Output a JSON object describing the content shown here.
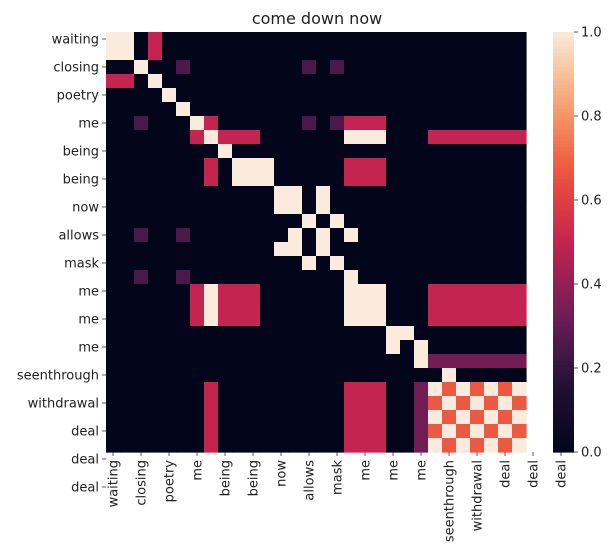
{
  "chart_data": {
    "type": "heatmap",
    "title": "come down now",
    "xlabel": "",
    "ylabel": "",
    "row_tick_labels": [
      "waiting",
      "closing",
      "poetry",
      "me",
      "being",
      "being",
      "now",
      "allows",
      "mask",
      "me",
      "me",
      "me",
      "seenthrough",
      "withdrawal",
      "deal",
      "deal",
      "deal"
    ],
    "col_tick_labels": [
      "waiting",
      "closing",
      "poetry",
      "me",
      "being",
      "being",
      "now",
      "allows",
      "mask",
      "me",
      "me",
      "me",
      "seenthrough",
      "withdrawal",
      "deal",
      "deal",
      "deal"
    ],
    "tokens": [
      "waiting",
      "waiting",
      "closing",
      "closing",
      "closing",
      "poetry",
      "me",
      "me",
      "being",
      "being",
      "being",
      "now",
      "now",
      "allows",
      "allows",
      "mask",
      "mask",
      "me",
      "me",
      "me",
      "seenthrough",
      "seenthrough",
      "withdrawal",
      "deal",
      "deal",
      "deal",
      "deal",
      "deal",
      "deal",
      "deal"
    ],
    "values": [
      [
        1,
        1,
        0,
        0.5,
        0,
        0,
        0,
        0,
        0,
        0,
        0,
        0,
        0,
        0,
        0,
        0,
        0,
        0,
        0,
        0,
        0,
        0,
        0,
        0,
        0,
        0,
        0,
        0,
        0,
        0
      ],
      [
        1,
        1,
        0,
        0.5,
        0,
        0,
        0,
        0,
        0,
        0,
        0,
        0,
        0,
        0,
        0,
        0,
        0,
        0,
        0,
        0,
        0,
        0,
        0,
        0,
        0,
        0,
        0,
        0,
        0,
        0
      ],
      [
        0,
        0,
        1,
        0,
        0,
        0.25,
        0,
        0,
        0,
        0,
        0,
        0,
        0,
        0,
        0.25,
        0,
        0.25,
        0,
        0,
        0,
        0,
        0,
        0,
        0,
        0,
        0,
        0,
        0,
        0,
        0
      ],
      [
        0.5,
        0.5,
        0,
        1,
        0,
        0,
        0,
        0,
        0,
        0,
        0,
        0,
        0,
        0,
        0,
        0,
        0,
        0,
        0,
        0,
        0,
        0,
        0,
        0,
        0,
        0,
        0,
        0,
        0,
        0
      ],
      [
        0,
        0,
        0,
        0,
        1,
        0,
        0,
        0,
        0,
        0,
        0,
        0,
        0,
        0,
        0,
        0,
        0,
        0,
        0,
        0,
        0,
        0,
        0,
        0,
        0,
        0,
        0,
        0,
        0,
        0
      ],
      [
        0,
        0,
        0,
        0,
        0,
        1,
        0,
        0,
        0,
        0,
        0,
        0,
        0,
        0,
        0,
        0,
        0,
        0,
        0,
        0,
        0,
        0,
        0,
        0,
        0,
        0,
        0,
        0,
        0,
        0
      ],
      [
        0,
        0,
        0.25,
        0,
        0,
        0,
        1,
        0.5,
        0,
        0,
        0,
        0,
        0,
        0,
        0.25,
        0,
        0.25,
        0.5,
        0.5,
        0.5,
        0,
        0,
        0,
        0,
        0,
        0,
        0,
        0,
        0,
        0
      ],
      [
        0,
        0,
        0,
        0,
        0,
        0,
        0.5,
        1,
        0.5,
        0.5,
        0.5,
        0,
        0,
        0,
        0,
        0,
        0,
        1,
        1,
        1,
        0,
        0,
        0,
        0.5,
        0.5,
        0.5,
        0.5,
        0.5,
        0.5,
        0.5
      ],
      [
        0,
        0,
        0,
        0,
        0,
        0,
        0,
        0,
        1,
        0,
        0,
        0,
        0,
        0,
        0,
        0,
        0,
        0,
        0,
        0,
        0,
        0,
        0,
        0,
        0,
        0,
        0,
        0,
        0,
        0
      ],
      [
        0,
        0,
        0,
        0,
        0,
        0,
        0,
        0.5,
        0,
        1,
        1,
        1,
        0,
        0,
        0,
        0,
        0,
        0.5,
        0.5,
        0.5,
        0,
        0,
        0,
        0,
        0,
        0,
        0,
        0,
        0,
        0
      ],
      [
        0,
        0,
        0,
        0,
        0,
        0,
        0,
        0.5,
        0,
        1,
        1,
        1,
        0,
        0,
        0,
        0,
        0,
        0.5,
        0.5,
        0.5,
        0,
        0,
        0,
        0,
        0,
        0,
        0,
        0,
        0,
        0
      ],
      [
        0,
        0,
        0,
        0,
        0,
        0,
        0,
        0,
        0,
        0,
        0,
        0,
        1,
        1,
        0,
        1,
        0,
        0,
        0,
        0,
        0,
        0,
        0,
        0,
        0,
        0,
        0,
        0,
        0,
        0
      ],
      [
        0,
        0,
        0,
        0,
        0,
        0,
        0,
        0,
        0,
        0,
        0,
        0,
        1,
        1,
        0,
        1,
        0,
        0,
        0,
        0,
        0,
        0,
        0,
        0,
        0,
        0,
        0,
        0,
        0,
        0
      ],
      [
        0,
        0,
        0,
        0,
        0,
        0,
        0,
        0,
        0,
        0,
        0,
        0,
        0,
        0,
        1,
        0,
        1,
        0,
        0,
        0,
        0,
        0,
        0,
        0,
        0,
        0,
        0,
        0,
        0,
        0
      ],
      [
        0,
        0,
        0.25,
        0,
        0,
        0.25,
        0,
        0,
        0,
        0,
        0,
        0,
        0,
        1,
        0,
        1,
        0,
        1,
        0,
        0,
        0,
        0,
        0,
        0,
        0,
        0,
        0,
        0,
        0,
        0
      ],
      [
        0,
        0,
        0,
        0,
        0,
        0,
        0,
        0,
        0,
        0,
        0,
        0,
        1,
        1,
        0,
        1,
        0,
        0,
        0,
        0,
        0,
        0,
        0,
        0,
        0,
        0,
        0,
        0,
        0,
        0
      ],
      [
        0,
        0,
        0,
        0,
        0,
        0,
        0,
        0,
        0,
        0,
        0,
        0,
        0,
        0,
        1,
        0,
        1,
        0,
        0,
        0,
        0,
        0,
        0,
        0,
        0,
        0,
        0,
        0,
        0,
        0
      ],
      [
        0,
        0,
        0.25,
        0,
        0,
        0.25,
        0,
        0,
        0,
        0,
        0,
        0,
        0,
        0,
        0,
        0,
        0,
        1,
        0,
        0,
        0,
        0,
        0,
        0,
        0,
        0,
        0,
        0,
        0,
        0
      ],
      [
        0,
        0,
        0,
        0,
        0,
        0,
        0.5,
        1,
        0.5,
        0.5,
        0.5,
        0,
        0,
        0,
        0,
        0,
        0,
        1,
        1,
        1,
        0,
        0,
        0,
        0.5,
        0.5,
        0.5,
        0.5,
        0.5,
        0.5,
        0.5
      ],
      [
        0,
        0,
        0,
        0,
        0,
        0,
        0.5,
        1,
        0.5,
        0.5,
        0.5,
        0,
        0,
        0,
        0,
        0,
        0,
        1,
        1,
        1,
        0,
        0,
        0,
        0.5,
        0.5,
        0.5,
        0.5,
        0.5,
        0.5,
        0.5
      ],
      [
        0,
        0,
        0,
        0,
        0,
        0,
        0.5,
        1,
        0.5,
        0.5,
        0.5,
        0,
        0,
        0,
        0,
        0,
        0,
        1,
        1,
        1,
        0,
        0,
        0,
        0.5,
        0.5,
        0.5,
        0.5,
        0.5,
        0.5,
        0.5
      ],
      [
        0,
        0,
        0,
        0,
        0,
        0,
        0,
        0,
        0,
        0,
        0,
        0,
        0,
        0,
        0,
        0,
        0,
        0,
        0,
        0,
        1,
        1,
        0,
        0,
        0,
        0,
        0,
        0,
        0,
        0
      ],
      [
        0,
        0,
        0,
        0,
        0,
        0,
        0,
        0,
        0,
        0,
        0,
        0,
        0,
        0,
        0,
        0,
        0,
        0,
        0,
        0,
        1,
        0,
        1,
        0,
        0,
        0,
        0,
        0,
        0,
        0
      ],
      [
        0,
        0,
        0,
        0,
        0,
        0,
        0,
        0,
        0,
        0,
        0,
        0,
        0,
        0,
        0,
        0,
        0,
        0,
        0,
        0,
        0,
        0,
        1,
        0.33,
        0.33,
        0.33,
        0.33,
        0.33,
        0.33,
        0.33
      ],
      [
        0,
        0,
        0,
        0,
        0,
        0,
        0,
        0,
        0,
        0,
        0,
        0,
        0,
        0,
        0,
        0,
        0,
        0,
        0,
        0,
        0,
        0,
        0,
        0,
        1,
        0,
        0,
        0,
        0,
        0
      ],
      [
        0,
        0,
        0,
        0,
        0,
        0,
        0,
        0.5,
        0,
        0,
        0,
        0,
        0,
        0,
        0,
        0,
        0,
        0.5,
        0.5,
        0.5,
        0,
        0,
        0.33,
        1,
        0.67,
        1,
        0.67,
        1,
        0.67,
        1
      ],
      [
        0,
        0,
        0,
        0,
        0,
        0,
        0,
        0.5,
        0,
        0,
        0,
        0,
        0,
        0,
        0,
        0,
        0,
        0.5,
        0.5,
        0.5,
        0,
        0,
        0.33,
        0.67,
        1,
        0.67,
        1,
        0.67,
        1,
        0.67
      ],
      [
        0,
        0,
        0,
        0,
        0,
        0,
        0,
        0.5,
        0,
        0,
        0,
        0,
        0,
        0,
        0,
        0,
        0,
        0.5,
        0.5,
        0.5,
        0,
        0,
        0.33,
        1,
        0.67,
        1,
        0.67,
        1,
        0.67,
        1
      ],
      [
        0,
        0,
        0,
        0,
        0,
        0,
        0,
        0.5,
        0,
        0,
        0,
        0,
        0,
        0,
        0,
        0,
        0,
        0.5,
        0.5,
        0.5,
        0,
        0,
        0.33,
        0.67,
        1,
        0.67,
        1,
        0.67,
        1,
        0.67
      ],
      [
        0,
        0,
        0,
        0,
        0,
        0,
        0,
        0.5,
        0,
        0,
        0,
        0,
        0,
        0,
        0,
        0,
        0,
        0.5,
        0.5,
        0.5,
        0,
        0,
        0.33,
        1,
        0.67,
        1,
        0.67,
        1,
        0.67,
        1
      ]
    ],
    "vmin": 0,
    "vmax": 1,
    "colorbar_ticks": [
      0.0,
      0.2,
      0.4,
      0.6,
      0.8,
      1.0
    ],
    "colorbar_tick_labels": [
      "0.0",
      "0.2",
      "0.4",
      "0.6",
      "0.8",
      "1.0"
    ],
    "colormap": "rocket",
    "grid": false,
    "legend": "colorbar-right"
  },
  "colors": {
    "background": "#ffffff",
    "text": "#222222"
  }
}
